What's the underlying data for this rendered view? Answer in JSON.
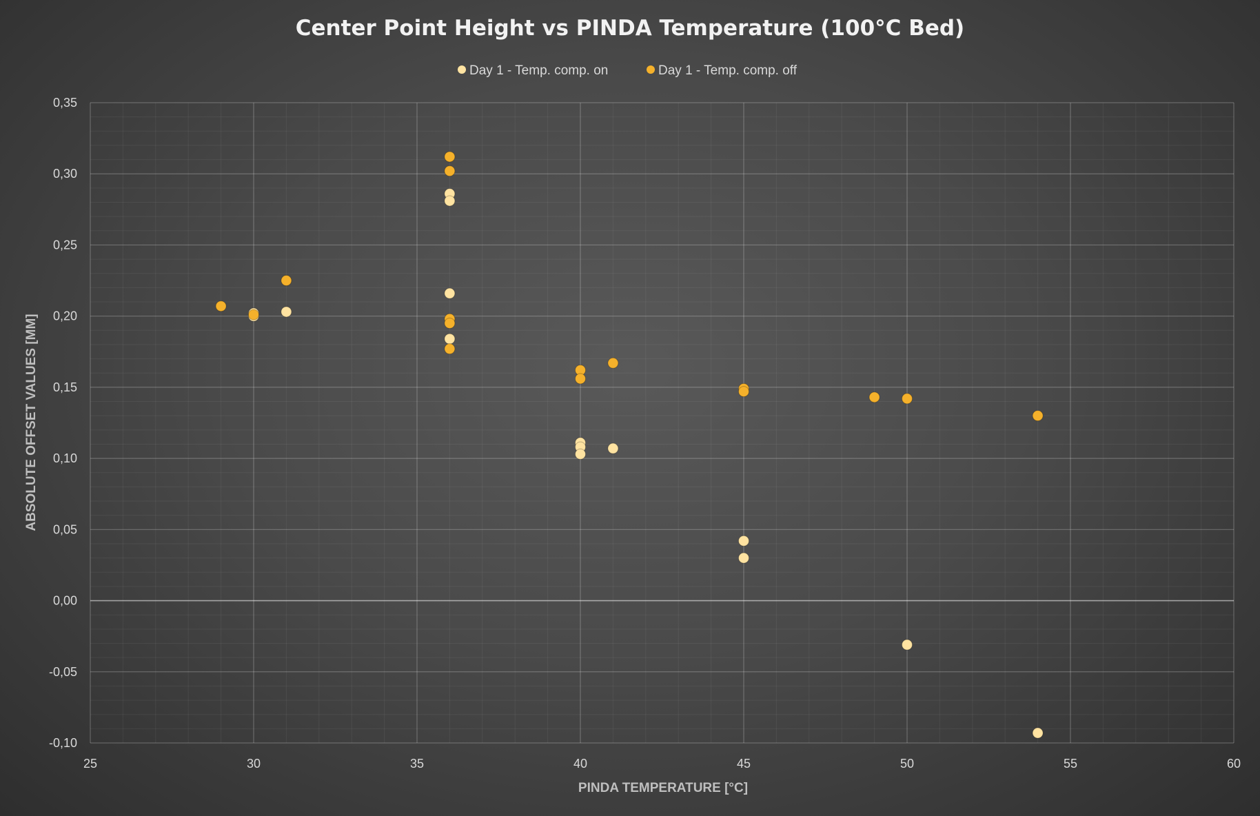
{
  "chart_data": {
    "type": "scatter",
    "title": "Center Point Height vs PINDA Temperature (100°C Bed)",
    "xlabel": "PINDA TEMPERATURE [°C]",
    "ylabel": "ABSOLUTE OFFSET VALUES [MM]",
    "xlim": [
      25,
      60
    ],
    "ylim": [
      -0.1,
      0.35
    ],
    "x_ticks": [
      "25",
      "30",
      "35",
      "40",
      "45",
      "50",
      "55",
      "60"
    ],
    "y_ticks": [
      "0,35",
      "0,30",
      "0,25",
      "0,20",
      "0,15",
      "0,10",
      "0,05",
      "0,00",
      "-0,05",
      "-0,10"
    ],
    "grid": true,
    "legend_position": "top-center",
    "series": [
      {
        "name": "Day 1 - Temp. comp. on",
        "color": "#ffe3a1",
        "points": [
          [
            30,
            0.202
          ],
          [
            30,
            0.2
          ],
          [
            31,
            0.203
          ],
          [
            36,
            0.286
          ],
          [
            36,
            0.281
          ],
          [
            36,
            0.216
          ],
          [
            36,
            0.184
          ],
          [
            40,
            0.111
          ],
          [
            40,
            0.108
          ],
          [
            40,
            0.103
          ],
          [
            41,
            0.107
          ],
          [
            45,
            0.042
          ],
          [
            45,
            0.03
          ],
          [
            50,
            -0.031
          ],
          [
            54,
            -0.093
          ]
        ]
      },
      {
        "name": "Day 1 - Temp. comp. off",
        "color": "#f5b12b",
        "points": [
          [
            29,
            0.207
          ],
          [
            30,
            0.201
          ],
          [
            31,
            0.225
          ],
          [
            36,
            0.312
          ],
          [
            36,
            0.302
          ],
          [
            36,
            0.198
          ],
          [
            36,
            0.195
          ],
          [
            36,
            0.177
          ],
          [
            40,
            0.162
          ],
          [
            40,
            0.156
          ],
          [
            41,
            0.167
          ],
          [
            45,
            0.149
          ],
          [
            45,
            0.147
          ],
          [
            49,
            0.143
          ],
          [
            50,
            0.142
          ],
          [
            54,
            0.13
          ]
        ]
      }
    ]
  }
}
